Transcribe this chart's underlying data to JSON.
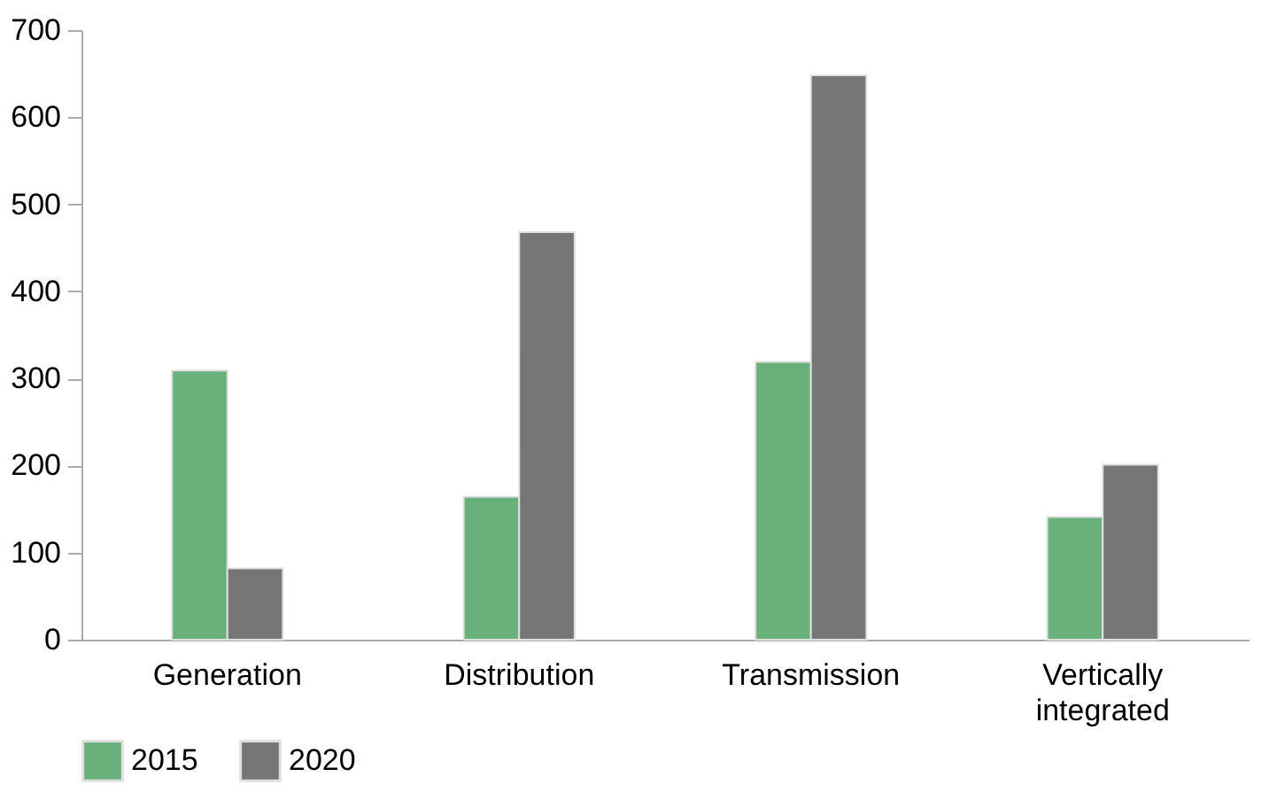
{
  "chart_data": {
    "type": "bar",
    "categories": [
      "Generation",
      "Distribution",
      "Transmission",
      "Vertically integrated"
    ],
    "series": [
      {
        "name": "2015",
        "color": "#69b07a",
        "values": [
          309,
          164,
          319,
          141
        ]
      },
      {
        "name": "2020",
        "color": "#767676",
        "values": [
          82,
          468,
          648,
          201
        ]
      }
    ],
    "ylim": [
      0,
      700
    ],
    "yticks": [
      0,
      100,
      200,
      300,
      400,
      500,
      600,
      700
    ],
    "grid": false,
    "legend": "bottom left"
  }
}
